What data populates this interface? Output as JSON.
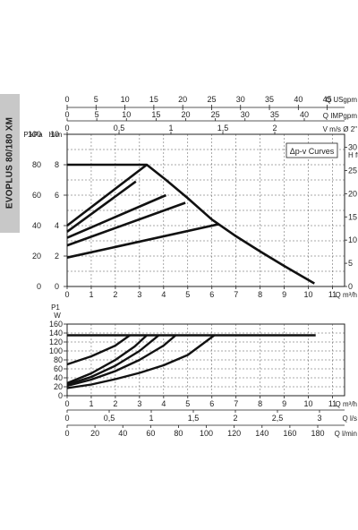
{
  "side_label": "EVOPLUS 80/180 XM",
  "chart_data": [
    {
      "type": "line",
      "title": "",
      "annotation": "Δp-v Curves",
      "axes": {
        "flow_usgpm": {
          "label": "Q USgpm",
          "range": [
            0,
            48
          ],
          "ticks": [
            0,
            5,
            10,
            15,
            20,
            25,
            30,
            35,
            40,
            45
          ]
        },
        "flow_impgpm": {
          "label": "Q IMPgpm",
          "range": [
            0,
            40
          ],
          "ticks": [
            0,
            5,
            10,
            15,
            20,
            25,
            30,
            35,
            40
          ]
        },
        "velocity": {
          "label": "V m/s Ø 2\"",
          "range": [
            0,
            2.5
          ],
          "ticks": [
            0,
            0.5,
            1,
            1.5,
            2
          ],
          "tick_labels": [
            "0",
            "0,5",
            "1",
            "1,5",
            "2"
          ]
        },
        "flow_m3h": {
          "label": "Q m³/h",
          "range": [
            0,
            11.5
          ],
          "ticks": [
            0,
            1,
            2,
            3,
            4,
            5,
            6,
            7,
            8,
            9,
            10,
            11
          ]
        },
        "head_m": {
          "label": "H/m",
          "range": [
            0,
            10
          ],
          "ticks": [
            0,
            2,
            4,
            6,
            8,
            10
          ]
        },
        "pressure_kpa": {
          "label": "P kPa",
          "range": [
            0,
            100
          ],
          "ticks": [
            0,
            20,
            40,
            60,
            80,
            100
          ]
        },
        "head_ft": {
          "label": "H ft",
          "range": [
            0,
            32.8
          ],
          "ticks": [
            0,
            5,
            10,
            15,
            20,
            25,
            30
          ]
        }
      },
      "x_unit": "Q m³/h",
      "y_unit": "H m",
      "series": [
        {
          "values": [
            [
              0,
              8
            ],
            [
              3.3,
              8
            ],
            [
              4.1,
              7
            ],
            [
              5.0,
              5.8
            ],
            [
              6.0,
              4.4
            ],
            [
              7.0,
              3.3
            ],
            [
              8.0,
              2.3
            ],
            [
              9.0,
              1.35
            ],
            [
              10.25,
              0.2
            ]
          ]
        },
        {
          "values": [
            [
              0,
              4.0
            ],
            [
              3.3,
              8.0
            ]
          ]
        },
        {
          "values": [
            [
              0,
              3.6
            ],
            [
              2.85,
              6.9
            ]
          ]
        },
        {
          "values": [
            [
              0,
              3.2
            ],
            [
              4.1,
              6.0
            ]
          ]
        },
        {
          "values": [
            [
              0,
              2.7
            ],
            [
              4.9,
              5.5
            ]
          ]
        },
        {
          "values": [
            [
              0,
              1.9
            ],
            [
              6.3,
              4.1
            ]
          ]
        }
      ]
    },
    {
      "type": "line",
      "title": "",
      "axes": {
        "flow_m3h": {
          "label": "Q m³/h",
          "range": [
            0,
            11.5
          ],
          "ticks": [
            0,
            1,
            2,
            3,
            4,
            5,
            6,
            7,
            8,
            9,
            10,
            11
          ]
        },
        "flow_ls": {
          "label": "Q l/s",
          "range": [
            0,
            3.2
          ],
          "ticks": [
            0,
            0.5,
            1,
            1.5,
            2,
            2.5,
            3
          ],
          "tick_labels": [
            "0",
            "0,5",
            "1",
            "1,5",
            "2",
            "2,5",
            "3"
          ]
        },
        "flow_lmin": {
          "label": "Q l/min",
          "range": [
            0,
            192
          ],
          "ticks": [
            0,
            20,
            40,
            60,
            80,
            100,
            120,
            140,
            160,
            180
          ]
        },
        "power_w": {
          "label": "P1 W",
          "range": [
            0,
            160
          ],
          "ticks": [
            0,
            20,
            40,
            60,
            80,
            100,
            120,
            140,
            160
          ]
        }
      },
      "x_unit": "Q m³/h",
      "y_unit": "P1 W",
      "series": [
        {
          "values": [
            [
              0,
              135
            ],
            [
              10.3,
              135
            ]
          ]
        },
        {
          "values": [
            [
              0,
              70
            ],
            [
              1.0,
              88
            ],
            [
              2.0,
              112
            ],
            [
              2.6,
              135
            ]
          ]
        },
        {
          "values": [
            [
              0,
              28
            ],
            [
              1.0,
              50
            ],
            [
              2.0,
              80
            ],
            [
              2.8,
              110
            ],
            [
              3.3,
              135
            ]
          ]
        },
        {
          "values": [
            [
              0,
              25
            ],
            [
              1.0,
              42
            ],
            [
              2.0,
              67
            ],
            [
              3.0,
              100
            ],
            [
              3.8,
              135
            ]
          ]
        },
        {
          "values": [
            [
              0,
              22
            ],
            [
              1.0,
              36
            ],
            [
              2.0,
              55
            ],
            [
              3.0,
              80
            ],
            [
              4.0,
              112
            ],
            [
              4.5,
              135
            ]
          ]
        },
        {
          "values": [
            [
              0,
              17
            ],
            [
              1.0,
              25
            ],
            [
              2.0,
              37
            ],
            [
              3.0,
              51
            ],
            [
              4.0,
              68
            ],
            [
              5.0,
              91
            ],
            [
              5.6,
              115
            ],
            [
              6.1,
              135
            ]
          ]
        }
      ]
    }
  ]
}
